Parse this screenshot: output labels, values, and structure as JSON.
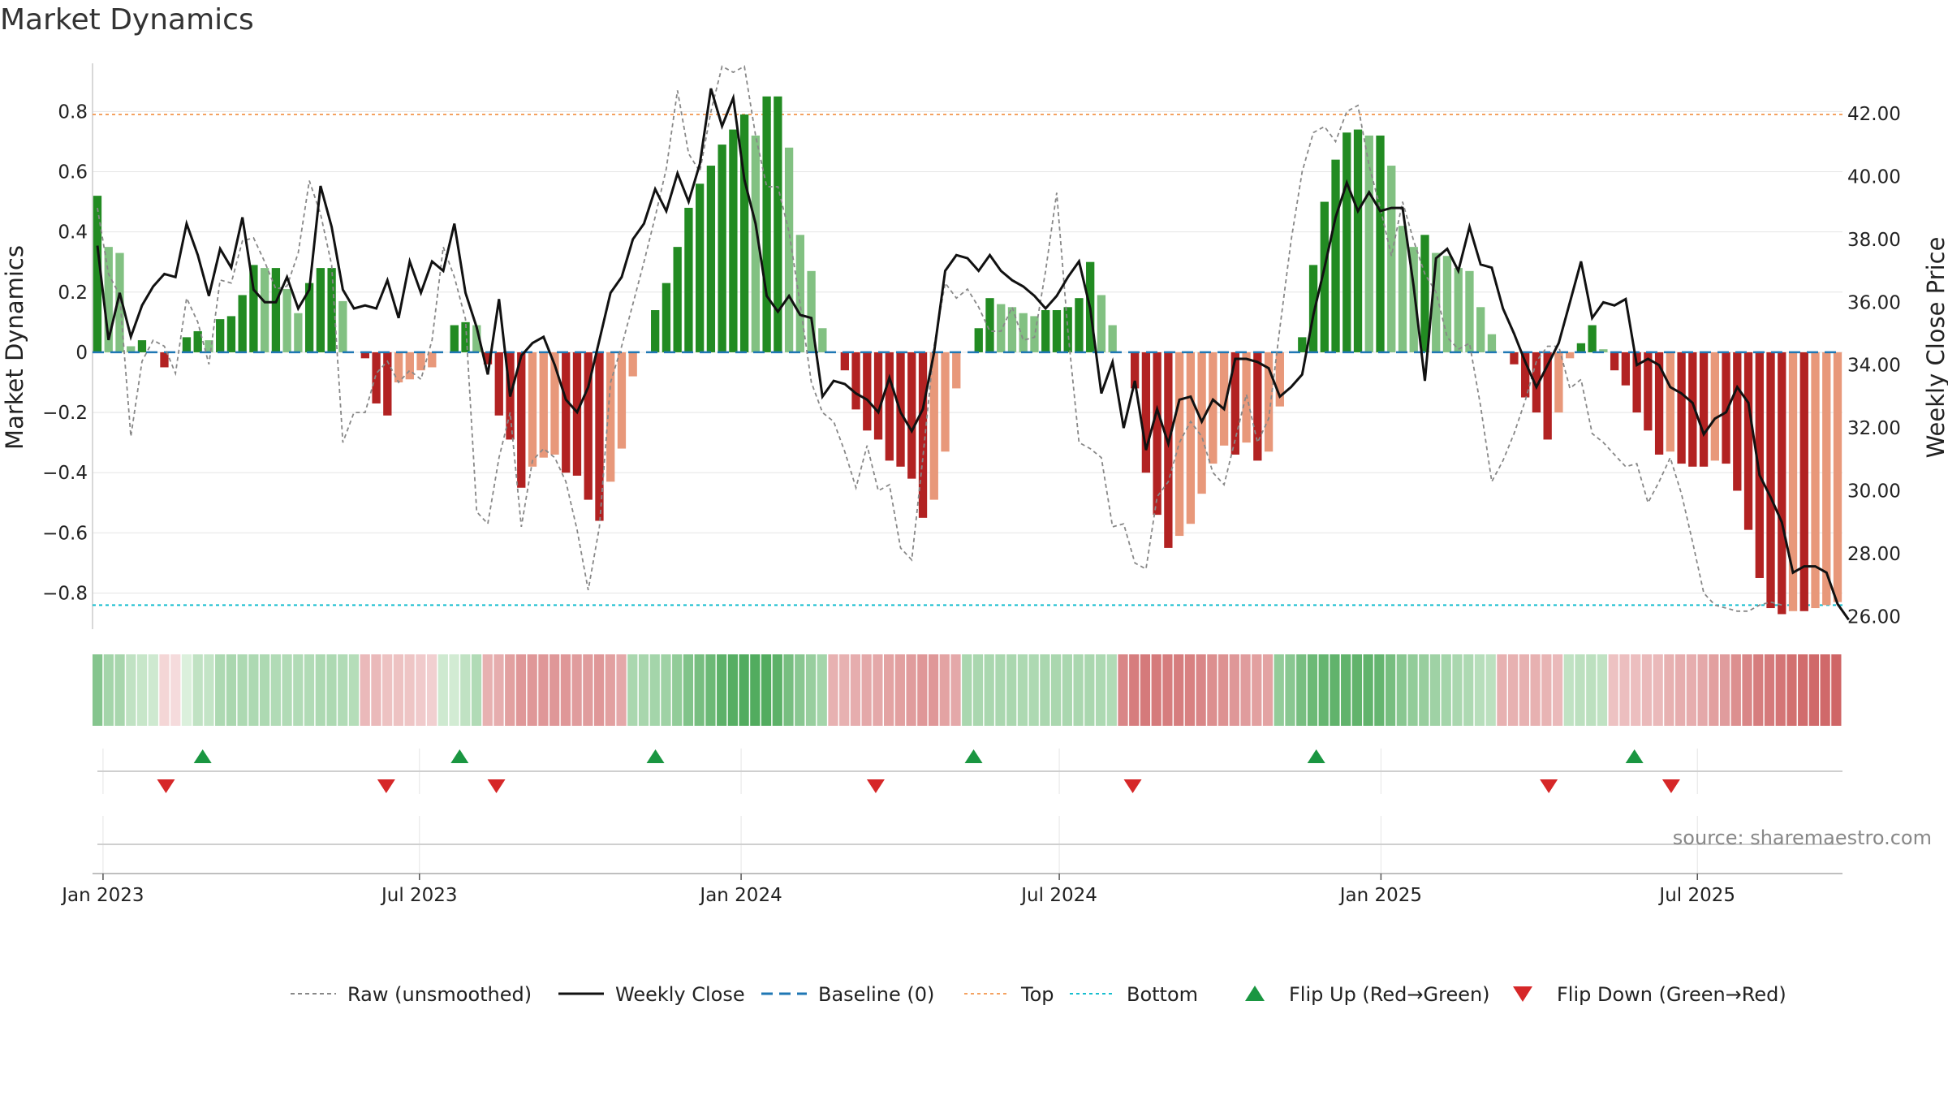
{
  "chart_data": {
    "type": "bar",
    "title": "Market Dynamics",
    "ylabel_left": "Market Dynamics",
    "ylabel_right": "Weekly Close Price",
    "ylim_left": [
      -0.92,
      0.96
    ],
    "ylim_right": [
      25.6,
      43.6
    ],
    "yticks_left": [
      {
        "v": 0.8,
        "t": "0.8"
      },
      {
        "v": 0.6,
        "t": "0.6"
      },
      {
        "v": 0.4,
        "t": "0.4"
      },
      {
        "v": 0.2,
        "t": "0.2"
      },
      {
        "v": 0.0,
        "t": "0"
      },
      {
        "v": -0.2,
        "t": "−0.2"
      },
      {
        "v": -0.4,
        "t": "−0.4"
      },
      {
        "v": -0.6,
        "t": "−0.6"
      },
      {
        "v": -0.8,
        "t": "−0.8"
      }
    ],
    "yticks_right": [
      "42.00",
      "40.00",
      "38.00",
      "36.00",
      "34.00",
      "32.00",
      "30.00",
      "28.00",
      "26.00"
    ],
    "x_start": "2022-12-26",
    "x_end": "2025-09-22",
    "xticks": [
      {
        "date": "2023-01-01",
        "label": "Jan 2023"
      },
      {
        "date": "2023-07-01",
        "label": "Jul 2023"
      },
      {
        "date": "2024-01-01",
        "label": "Jan 2024"
      },
      {
        "date": "2024-07-01",
        "label": "Jul 2024"
      },
      {
        "date": "2025-01-01",
        "label": "Jan 2025"
      },
      {
        "date": "2025-07-01",
        "label": "Jul 2025"
      }
    ],
    "top_line": 0.79,
    "bottom_line": -0.84,
    "baseline": 0,
    "bars": [
      0.52,
      0.35,
      0.33,
      0.02,
      0.04,
      0.0,
      -0.05,
      0.0,
      0.05,
      0.07,
      0.04,
      0.11,
      0.12,
      0.19,
      0.29,
      0.28,
      0.28,
      0.21,
      0.13,
      0.23,
      0.28,
      0.28,
      0.17,
      0.0,
      -0.02,
      -0.17,
      -0.21,
      -0.1,
      -0.09,
      -0.06,
      -0.05,
      0.0,
      0.09,
      0.1,
      0.09,
      -0.04,
      -0.21,
      -0.29,
      -0.45,
      -0.38,
      -0.35,
      -0.34,
      -0.4,
      -0.41,
      -0.49,
      -0.56,
      -0.43,
      -0.32,
      -0.08,
      0.0,
      0.14,
      0.23,
      0.35,
      0.48,
      0.56,
      0.62,
      0.69,
      0.74,
      0.79,
      0.72,
      0.85,
      0.85,
      0.68,
      0.39,
      0.27,
      0.08,
      0.0,
      -0.06,
      -0.19,
      -0.26,
      -0.29,
      -0.36,
      -0.38,
      -0.42,
      -0.55,
      -0.49,
      -0.33,
      -0.12,
      0.0,
      0.08,
      0.18,
      0.16,
      0.15,
      0.13,
      0.12,
      0.14,
      0.14,
      0.15,
      0.18,
      0.3,
      0.19,
      0.09,
      0.0,
      -0.12,
      -0.4,
      -0.54,
      -0.65,
      -0.61,
      -0.57,
      -0.47,
      -0.37,
      -0.31,
      -0.34,
      -0.3,
      -0.36,
      -0.33,
      -0.18,
      0.0,
      0.05,
      0.29,
      0.5,
      0.64,
      0.73,
      0.74,
      0.72,
      0.72,
      0.62,
      0.42,
      0.35,
      0.39,
      0.33,
      0.32,
      0.28,
      0.27,
      0.15,
      0.06,
      0.0,
      -0.04,
      -0.15,
      -0.2,
      -0.29,
      -0.2,
      -0.02,
      0.03,
      0.09,
      0.01,
      -0.06,
      -0.11,
      -0.2,
      -0.26,
      -0.34,
      -0.33,
      -0.37,
      -0.38,
      -0.38,
      -0.36,
      -0.37,
      -0.46,
      -0.59,
      -0.75,
      -0.85,
      -0.87,
      -0.86,
      -0.86,
      -0.85,
      -0.84,
      -0.83
    ],
    "raw": [
      0.48,
      0.26,
      0.19,
      -0.28,
      -0.03,
      0.04,
      0.02,
      -0.07,
      0.18,
      0.1,
      -0.04,
      0.24,
      0.23,
      0.37,
      0.38,
      0.3,
      0.21,
      0.22,
      0.33,
      0.57,
      0.46,
      0.29,
      -0.3,
      -0.2,
      -0.2,
      -0.07,
      -0.03,
      -0.1,
      -0.06,
      -0.09,
      0.04,
      0.35,
      0.25,
      0.11,
      -0.53,
      -0.57,
      -0.35,
      -0.2,
      -0.58,
      -0.36,
      -0.32,
      -0.35,
      -0.43,
      -0.59,
      -0.79,
      -0.58,
      -0.1,
      0.02,
      0.16,
      0.3,
      0.45,
      0.61,
      0.87,
      0.66,
      0.6,
      0.8,
      0.95,
      0.93,
      0.95,
      0.72,
      0.55,
      0.55,
      0.4,
      0.16,
      -0.1,
      -0.2,
      -0.23,
      -0.33,
      -0.45,
      -0.31,
      -0.46,
      -0.44,
      -0.65,
      -0.69,
      -0.35,
      0.02,
      0.23,
      0.18,
      0.21,
      0.15,
      0.07,
      0.07,
      0.15,
      0.04,
      0.05,
      0.27,
      0.53,
      0.07,
      -0.3,
      -0.32,
      -0.35,
      -0.58,
      -0.57,
      -0.7,
      -0.72,
      -0.48,
      -0.43,
      -0.3,
      -0.23,
      -0.28,
      -0.4,
      -0.44,
      -0.29,
      -0.14,
      -0.3,
      -0.22,
      0.08,
      0.37,
      0.6,
      0.73,
      0.75,
      0.7,
      0.8,
      0.82,
      0.62,
      0.48,
      0.32,
      0.5,
      0.37,
      0.26,
      0.2,
      0.05,
      0.01,
      0.03,
      -0.18,
      -0.43,
      -0.36,
      -0.27,
      -0.16,
      -0.03,
      0.02,
      0.02,
      -0.12,
      -0.09,
      -0.27,
      -0.3,
      -0.34,
      -0.38,
      -0.37,
      -0.5,
      -0.43,
      -0.35,
      -0.47,
      -0.63,
      -0.8,
      -0.84,
      -0.85,
      -0.86,
      -0.86,
      -0.84,
      -0.83,
      -0.84
    ],
    "close": [
      37.8,
      34.8,
      36.3,
      34.9,
      35.9,
      36.5,
      36.9,
      36.8,
      38.5,
      37.5,
      36.2,
      37.7,
      37.1,
      38.7,
      36.4,
      36.0,
      36.0,
      36.8,
      35.8,
      36.4,
      39.7,
      38.4,
      36.4,
      35.8,
      35.9,
      35.8,
      36.7,
      35.5,
      37.3,
      36.3,
      37.3,
      37.0,
      38.5,
      36.3,
      35.2,
      33.7,
      36.1,
      33.0,
      34.3,
      34.7,
      34.9,
      34.0,
      32.9,
      32.5,
      33.3,
      34.8,
      36.3,
      36.8,
      38.0,
      38.5,
      39.6,
      38.9,
      40.1,
      39.2,
      40.4,
      42.8,
      41.6,
      42.5,
      39.9,
      38.5,
      36.2,
      35.7,
      36.2,
      35.6,
      35.5,
      33.0,
      33.5,
      33.4,
      33.1,
      32.9,
      32.5,
      33.6,
      32.5,
      31.9,
      32.6,
      34.4,
      37.0,
      37.5,
      37.4,
      37.0,
      37.5,
      37.0,
      36.7,
      36.5,
      36.2,
      35.8,
      36.2,
      36.8,
      37.3,
      35.8,
      33.1,
      34.1,
      32.0,
      33.5,
      31.3,
      32.6,
      31.5,
      32.9,
      33.0,
      32.2,
      32.9,
      32.6,
      34.2,
      34.2,
      34.1,
      33.9,
      33.0,
      33.3,
      33.7,
      35.6,
      37.1,
      38.7,
      39.8,
      38.9,
      39.5,
      38.9,
      39.0,
      39.0,
      36.5,
      33.5,
      37.4,
      37.7,
      37.0,
      38.4,
      37.2,
      37.1,
      35.8,
      35.0,
      34.1,
      33.3,
      34.0,
      34.7,
      36.0,
      37.3,
      35.5,
      36.0,
      35.9,
      36.1,
      34.0,
      34.2,
      34.0,
      33.3,
      33.1,
      32.8,
      31.8,
      32.3,
      32.5,
      33.3,
      32.8,
      30.5,
      29.8,
      29.0,
      27.4,
      27.6,
      27.6,
      27.4,
      26.4,
      25.9
    ],
    "heat": [
      0.52,
      0.35,
      0.33,
      0.2,
      0.16,
      0.12,
      -0.08,
      -0.05,
      0.05,
      0.2,
      0.18,
      0.3,
      0.32,
      0.3,
      0.3,
      0.3,
      0.28,
      0.28,
      0.28,
      0.28,
      0.3,
      0.3,
      0.28,
      0.26,
      -0.25,
      -0.25,
      -0.2,
      -0.2,
      -0.18,
      -0.15,
      -0.12,
      0.12,
      0.1,
      0.2,
      0.28,
      -0.3,
      -0.32,
      -0.4,
      -0.45,
      -0.45,
      -0.45,
      -0.45,
      -0.45,
      -0.42,
      -0.42,
      -0.45,
      -0.4,
      -0.35,
      0.32,
      0.33,
      0.35,
      0.38,
      0.45,
      0.55,
      0.6,
      0.66,
      0.74,
      0.78,
      0.8,
      0.8,
      0.8,
      0.75,
      0.6,
      0.5,
      0.42,
      0.35,
      -0.3,
      -0.3,
      -0.32,
      -0.35,
      -0.35,
      -0.38,
      -0.4,
      -0.42,
      -0.45,
      -0.45,
      -0.38,
      -0.35,
      0.32,
      0.32,
      0.32,
      0.32,
      0.32,
      0.3,
      0.3,
      0.32,
      0.32,
      0.32,
      0.32,
      0.32,
      0.3,
      0.28,
      -0.55,
      -0.6,
      -0.62,
      -0.62,
      -0.6,
      -0.6,
      -0.58,
      -0.55,
      -0.5,
      -0.48,
      -0.45,
      -0.42,
      -0.4,
      -0.38,
      0.45,
      0.5,
      0.6,
      0.66,
      0.7,
      0.72,
      0.72,
      0.72,
      0.72,
      0.7,
      0.6,
      0.5,
      0.45,
      0.42,
      0.38,
      0.35,
      0.32,
      0.3,
      0.25,
      0.22,
      -0.3,
      -0.3,
      -0.3,
      -0.3,
      -0.28,
      -0.25,
      0.2,
      0.22,
      0.22,
      0.2,
      -0.2,
      -0.22,
      -0.22,
      -0.25,
      -0.25,
      -0.3,
      -0.32,
      -0.32,
      -0.35,
      -0.4,
      -0.42,
      -0.5,
      -0.55,
      -0.6,
      -0.62,
      -0.65,
      -0.68,
      -0.7,
      -0.72,
      -0.72,
      -0.74
    ],
    "flip_up_dates": [
      "2023-02-27",
      "2023-07-24",
      "2023-11-13",
      "2024-05-13",
      "2024-11-25",
      "2025-05-26"
    ],
    "flip_down_dates": [
      "2023-02-06",
      "2023-06-12",
      "2023-08-14",
      "2024-03-18",
      "2024-08-12",
      "2025-04-07",
      "2025-06-16"
    ],
    "colors": {
      "strong_up": "#228b22",
      "weak_up": "#82c182",
      "strong_down": "#b22222",
      "weak_down": "#e8987a",
      "raw": "#888888",
      "close": "#111111",
      "baseline": "#1f77b4",
      "top": "#f4a261",
      "bottom": "#17becf",
      "flip_up": "#1a9641",
      "flip_down": "#d62728",
      "grid": "#e5e5e5",
      "axis": "#cccccc"
    },
    "legend": [
      {
        "label": "Raw (unsmoothed)",
        "kind": "dashed-gray"
      },
      {
        "label": "Weekly Close",
        "kind": "solid-black"
      },
      {
        "label": "Baseline (0)",
        "kind": "dashed-blue"
      },
      {
        "label": "Top",
        "kind": "dotted-orange"
      },
      {
        "label": "Bottom",
        "kind": "dotted-cyan"
      },
      {
        "label": "Flip Up (Red→Green)",
        "kind": "triangle-up"
      },
      {
        "label": "Flip Down (Green→Red)",
        "kind": "triangle-down"
      }
    ],
    "legend_position": "bottom-center",
    "source": "source: sharemaestro.com"
  }
}
